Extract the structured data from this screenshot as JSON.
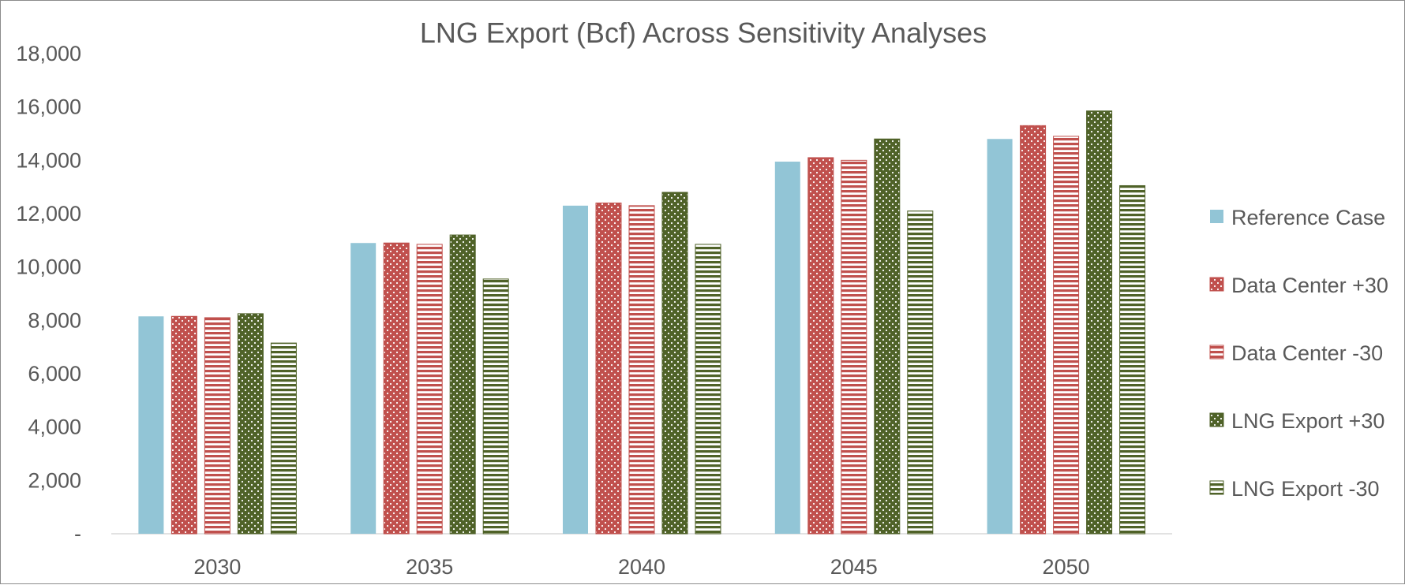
{
  "chart_data": {
    "type": "bar",
    "title": "LNG Export (Bcf) Across Sensitivity Analyses",
    "xlabel": "",
    "ylabel": "",
    "categories": [
      "2030",
      "2035",
      "2040",
      "2045",
      "2050"
    ],
    "ylim": [
      0,
      18000
    ],
    "y_ticks": [
      0,
      2000,
      4000,
      6000,
      8000,
      10000,
      12000,
      14000,
      16000,
      18000
    ],
    "y_tick_labels": [
      "-",
      "2,000",
      "4,000",
      "6,000",
      "8,000",
      "10,000",
      "12,000",
      "14,000",
      "16,000",
      "18,000"
    ],
    "grid": false,
    "legend_position": "right",
    "series": [
      {
        "name": "Reference Case",
        "color": "#92c5d6",
        "pattern": "solid",
        "values": [
          8150,
          10900,
          12300,
          13950,
          14800
        ]
      },
      {
        "name": "Data Center +30",
        "color": "#c0504d",
        "pattern": "dotted",
        "values": [
          8150,
          10900,
          12400,
          14100,
          15300
        ]
      },
      {
        "name": "Data Center -30",
        "color": "#c0504d",
        "pattern": "horizontal-stripes",
        "values": [
          8100,
          10850,
          12300,
          14000,
          14900
        ]
      },
      {
        "name": "LNG Export +30",
        "color": "#4f6228",
        "pattern": "dotted",
        "values": [
          8250,
          11200,
          12800,
          14800,
          15850
        ]
      },
      {
        "name": "LNG Export -30",
        "color": "#4f6228",
        "pattern": "horizontal-stripes",
        "values": [
          7150,
          9550,
          10850,
          12100,
          13050
        ]
      }
    ]
  }
}
